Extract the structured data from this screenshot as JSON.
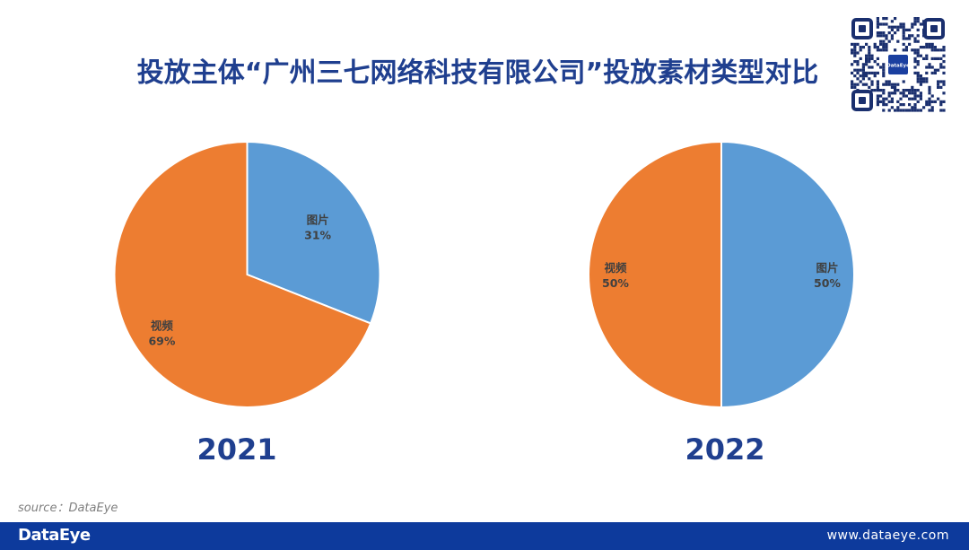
{
  "title": "投放主体“广州三七网络科技有限公司”投放素材类型对比",
  "qr_logo_text": "DataEye",
  "chart_data": [
    {
      "type": "pie",
      "year_label": "2021",
      "categories": [
        "图片",
        "视频"
      ],
      "values": [
        31,
        69
      ],
      "labels": [
        "31%",
        "69%"
      ],
      "colors": [
        "#5b9bd5",
        "#ed7d31"
      ]
    },
    {
      "type": "pie",
      "year_label": "2022",
      "categories": [
        "图片",
        "视频"
      ],
      "values": [
        50,
        50
      ],
      "labels": [
        "50%",
        "50%"
      ],
      "colors": [
        "#5b9bd5",
        "#ed7d31"
      ]
    }
  ],
  "source": "source：DataEye",
  "footer": {
    "logo": "DataEye",
    "url": "www.dataeye.com"
  }
}
